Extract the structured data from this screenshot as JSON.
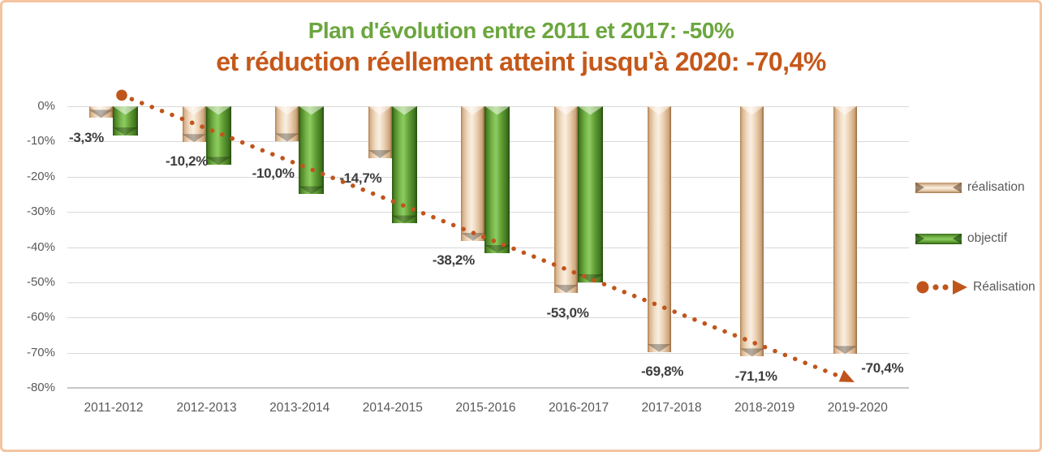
{
  "page": {
    "border_color": "#f4c4a0",
    "background": "#ffffff"
  },
  "title": {
    "line1": "Plan d'évolution entre 2011 et 2017: -50%",
    "line1_color": "#6ca63f",
    "line2": "et réduction réellement atteint jusqu'à 2020: -70,4%",
    "line2_color": "#c5581a"
  },
  "chart_data": {
    "type": "bar",
    "categories": [
      "2011-2012",
      "2012-2013",
      "2013-2014",
      "2014-2015",
      "2015-2016",
      "2016-2017",
      "2017-2018",
      "2018-2019",
      "2019-2020"
    ],
    "series": [
      {
        "name": "réalisation",
        "color": "#ecd2b5",
        "values": [
          -3.3,
          -10.2,
          -10.0,
          -14.7,
          -38.2,
          -53.0,
          -69.8,
          -71.1,
          -70.4
        ],
        "labels": [
          "-3,3%",
          "-10,2%",
          "-10,0%",
          "-14,7%",
          "-38,2%",
          "-53,0%",
          "-69,8%",
          "-71,1%",
          "-70,4%"
        ]
      },
      {
        "name": "objectif",
        "color": "#63a135",
        "values": [
          -8.3,
          -16.7,
          -25.0,
          -33.3,
          -41.7,
          -50.0,
          null,
          null,
          null
        ]
      }
    ],
    "trendline": {
      "name": "Réalisation",
      "color": "#c0551c",
      "style": "dotted-with-arrow",
      "start_pct": 3.2,
      "end_pct": -78.5
    },
    "y_ticks": [
      "0%",
      "-10%",
      "-20%",
      "-30%",
      "-40%",
      "-50%",
      "-60%",
      "-70%",
      "-80%"
    ],
    "ylim": [
      -80,
      0
    ],
    "grid": "horizontal",
    "legend_position": "right",
    "legend": [
      {
        "label": "réalisation",
        "swatch": "beige-3d-bar"
      },
      {
        "label": "objectif",
        "swatch": "green-3d-bar"
      },
      {
        "label": "Réalisation",
        "swatch": "orange-dotted-arrow-line"
      }
    ]
  }
}
